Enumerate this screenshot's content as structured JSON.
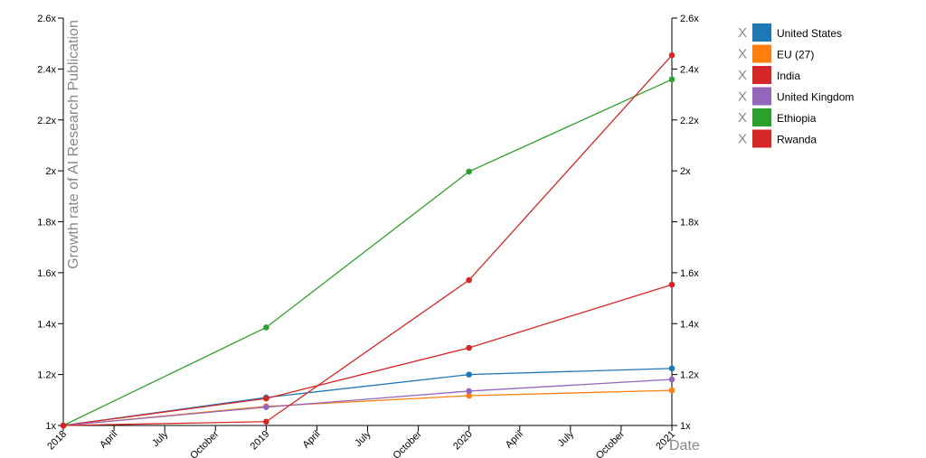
{
  "chart_data": {
    "type": "line",
    "y_label": "Growth rate of AI Research Publication",
    "x_label": "Date",
    "legend_remove": "X",
    "x": [
      2018,
      2019,
      2020,
      2021
    ],
    "xlim": [
      2018,
      2021
    ],
    "xticks": [
      {
        "value": 2018,
        "label": "2018"
      },
      {
        "value": 2018.25,
        "label": "April"
      },
      {
        "value": 2018.5,
        "label": "July"
      },
      {
        "value": 2018.75,
        "label": "October"
      },
      {
        "value": 2019,
        "label": "2019"
      },
      {
        "value": 2019.25,
        "label": "April"
      },
      {
        "value": 2019.5,
        "label": "July"
      },
      {
        "value": 2019.75,
        "label": "October"
      },
      {
        "value": 2020,
        "label": "2020"
      },
      {
        "value": 2020.25,
        "label": "April"
      },
      {
        "value": 2020.5,
        "label": "July"
      },
      {
        "value": 2020.75,
        "label": "October"
      },
      {
        "value": 2021,
        "label": "2021"
      }
    ],
    "ylim": [
      1,
      2.6
    ],
    "yticks": [
      {
        "value": 1,
        "label": "1x"
      },
      {
        "value": 1.2,
        "label": "1.2x"
      },
      {
        "value": 1.4,
        "label": "1.4x"
      },
      {
        "value": 1.6,
        "label": "1.6x"
      },
      {
        "value": 1.8,
        "label": "1.8x"
      },
      {
        "value": 2,
        "label": "2x"
      },
      {
        "value": 2.2,
        "label": "2.2x"
      },
      {
        "value": 2.4,
        "label": "2.4x"
      },
      {
        "value": 2.6,
        "label": "2.6x"
      }
    ],
    "y2lim": [
      1,
      2.6
    ],
    "y2ticks": [
      {
        "value": 1,
        "label": "1x"
      },
      {
        "value": 1.2,
        "label": "1.2x"
      },
      {
        "value": 1.4,
        "label": "1.4x"
      },
      {
        "value": 1.6,
        "label": "1.6x"
      },
      {
        "value": 1.8,
        "label": "1.8x"
      },
      {
        "value": 2,
        "label": "2x"
      },
      {
        "value": 2.2,
        "label": "2.2x"
      },
      {
        "value": 2.4,
        "label": "2.4x"
      },
      {
        "value": 2.6,
        "label": "2.6x"
      }
    ],
    "series": [
      {
        "name": "United States",
        "color": "#1f77b4",
        "values": [
          1,
          1.11,
          1.2,
          1.224
        ]
      },
      {
        "name": "EU (27)",
        "color": "#ff7f0e",
        "values": [
          1,
          1.075,
          1.117,
          1.138
        ]
      },
      {
        "name": "India",
        "color": "#d62728",
        "values": [
          1,
          1.106,
          1.305,
          1.553
        ]
      },
      {
        "name": "United Kingdom",
        "color": "#9467bd",
        "values": [
          1,
          1.072,
          1.135,
          1.181
        ]
      },
      {
        "name": "Ethiopia",
        "color": "#2ca02c",
        "values": [
          1,
          1.385,
          1.997,
          2.359
        ]
      },
      {
        "name": "Rwanda",
        "color": "#d62728",
        "values": [
          1,
          1.015,
          1.571,
          2.454
        ]
      }
    ]
  }
}
